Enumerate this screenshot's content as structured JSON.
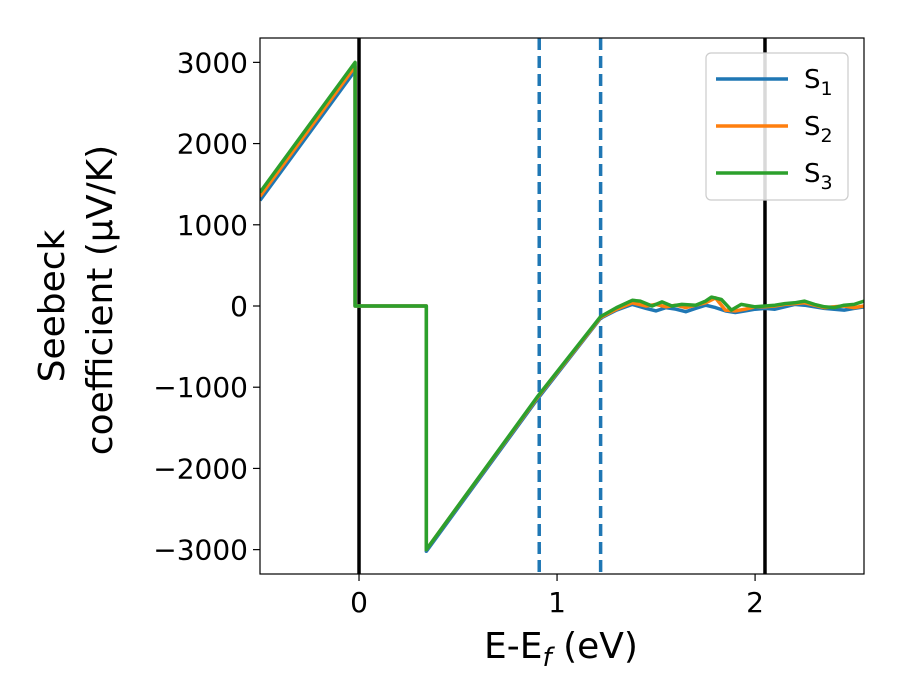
{
  "chart_data": {
    "type": "line",
    "xlabel": {
      "main": "E-E",
      "sub": "f",
      "unit": " (eV)"
    },
    "ylabel": {
      "line1": "Seebeck",
      "line2": "coefficient  (μV/K)"
    },
    "xlim": [
      -0.5,
      2.55
    ],
    "ylim": [
      -3300,
      3300
    ],
    "x_ticks": [
      0,
      1,
      2
    ],
    "x_tick_labels": [
      "0",
      "1",
      "2"
    ],
    "y_ticks": [
      3000,
      2000,
      1000,
      0,
      -1000,
      -2000,
      -3000
    ],
    "y_tick_labels": [
      "3000",
      "2000",
      "1000",
      "0",
      "−1000",
      "−2000",
      "−3000"
    ],
    "grid": false,
    "legend_position": "top-right",
    "vertical_lines": [
      {
        "x": 0.0,
        "style": "solid",
        "color": "#000000"
      },
      {
        "x": 2.05,
        "style": "solid",
        "color": "#000000"
      },
      {
        "x": 0.91,
        "style": "dashed",
        "color": "#1f77b4"
      },
      {
        "x": 1.22,
        "style": "dashed",
        "color": "#1f77b4"
      }
    ],
    "series": [
      {
        "name": "S",
        "subscript": "1",
        "color": "#1f77b4",
        "x": [
          -0.5,
          -0.02,
          -0.02,
          0.34,
          0.34,
          0.9,
          1.22,
          1.3,
          1.38,
          1.45,
          1.5,
          1.55,
          1.6,
          1.65,
          1.7,
          1.75,
          1.8,
          1.85,
          1.9,
          1.95,
          2.0,
          2.05,
          2.1,
          2.15,
          2.2,
          2.25,
          2.3,
          2.35,
          2.4,
          2.45,
          2.5,
          2.55
        ],
        "y": [
          1300,
          2900,
          0,
          0,
          -3020,
          -1150,
          -150,
          -50,
          20,
          -30,
          -60,
          -20,
          -40,
          -70,
          -30,
          10,
          -20,
          -60,
          -80,
          -60,
          -40,
          -30,
          -40,
          -10,
          20,
          10,
          -10,
          -30,
          -40,
          -50,
          -30,
          -10
        ]
      },
      {
        "name": "S",
        "subscript": "2",
        "color": "#ff7f0e",
        "x": [
          -0.5,
          -0.02,
          -0.02,
          0.34,
          0.34,
          0.9,
          1.22,
          1.3,
          1.38,
          1.45,
          1.5,
          1.55,
          1.6,
          1.65,
          1.7,
          1.75,
          1.8,
          1.85,
          1.9,
          1.95,
          2.0,
          2.05,
          2.1,
          2.15,
          2.2,
          2.25,
          2.3,
          2.35,
          2.4,
          2.45,
          2.5,
          2.55
        ],
        "y": [
          1350,
          2950,
          0,
          0,
          -3000,
          -1130,
          -140,
          -40,
          40,
          0,
          20,
          -10,
          10,
          -20,
          10,
          40,
          100,
          -50,
          -60,
          -40,
          -10,
          -10,
          0,
          20,
          30,
          40,
          10,
          -20,
          -10,
          0,
          -20,
          0
        ]
      },
      {
        "name": "S",
        "subscript": "3",
        "color": "#2ca02c",
        "x": [
          -0.5,
          -0.02,
          -0.02,
          0.34,
          0.34,
          0.9,
          1.22,
          1.3,
          1.38,
          1.42,
          1.48,
          1.53,
          1.58,
          1.63,
          1.7,
          1.75,
          1.78,
          1.83,
          1.88,
          1.93,
          2.0,
          2.05,
          2.1,
          2.15,
          2.2,
          2.25,
          2.3,
          2.35,
          2.4,
          2.45,
          2.5,
          2.55
        ],
        "y": [
          1400,
          3000,
          0,
          0,
          -3000,
          -1120,
          -130,
          -20,
          70,
          60,
          0,
          50,
          0,
          20,
          10,
          60,
          110,
          80,
          -50,
          20,
          -10,
          0,
          10,
          30,
          40,
          60,
          20,
          -10,
          -20,
          10,
          20,
          60
        ]
      }
    ]
  }
}
